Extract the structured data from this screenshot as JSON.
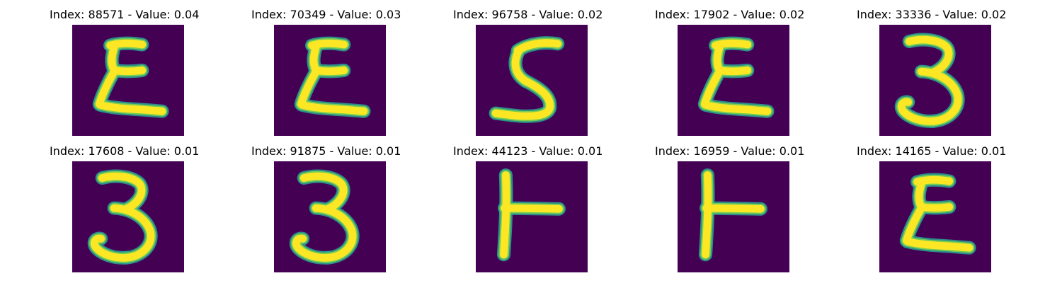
{
  "colors": {
    "background": "#440154",
    "stroke_outer": "#2a9d8f",
    "stroke_mid": "#7ad151",
    "stroke_core": "#fde725"
  },
  "panels": [
    {
      "index": "88571",
      "value": "0.04",
      "title": "Index: 88571 - Value: 0.04",
      "glyph": "epsilon"
    },
    {
      "index": "70349",
      "value": "0.03",
      "title": "Index: 70349 - Value: 0.03",
      "glyph": "epsilon"
    },
    {
      "index": "96758",
      "value": "0.02",
      "title": "Index: 96758 - Value: 0.02",
      "glyph": "five"
    },
    {
      "index": "17902",
      "value": "0.02",
      "title": "Index: 17902 - Value: 0.02",
      "glyph": "epsilon"
    },
    {
      "index": "33336",
      "value": "0.02",
      "title": "Index: 33336 - Value: 0.02",
      "glyph": "three"
    },
    {
      "index": "17608",
      "value": "0.01",
      "title": "Index: 17608 - Value: 0.01",
      "glyph": "three"
    },
    {
      "index": "91875",
      "value": "0.01",
      "title": "Index: 91875 - Value: 0.01",
      "glyph": "three"
    },
    {
      "index": "44123",
      "value": "0.01",
      "title": "Index: 44123 - Value: 0.01",
      "glyph": "tee"
    },
    {
      "index": "16959",
      "value": "0.01",
      "title": "Index: 16959 - Value: 0.01",
      "glyph": "tee"
    },
    {
      "index": "14165",
      "value": "0.01",
      "title": "Index: 14165 - Value: 0.01",
      "glyph": "epsilon"
    }
  ]
}
